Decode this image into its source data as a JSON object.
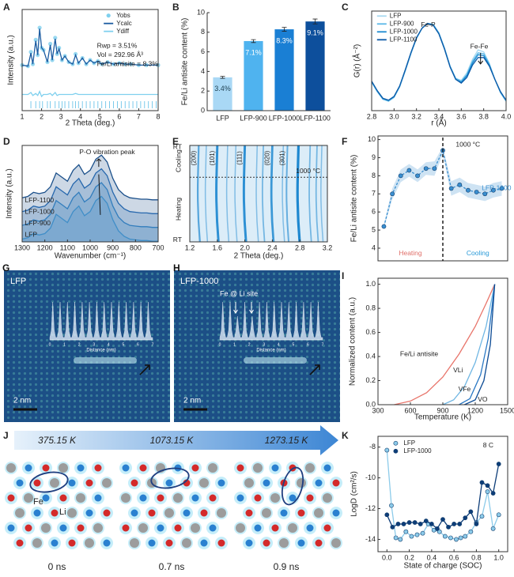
{
  "chart_data": [
    {
      "panel": "A",
      "type": "line",
      "x_label": "2 Theta (deg.)",
      "y_label": "Intensity (a.u.)",
      "xlim": [
        1,
        8
      ],
      "xticks": [
        1,
        2,
        3,
        4,
        5,
        6,
        7,
        8
      ],
      "ylim": [
        0,
        100
      ],
      "legend": "upper right",
      "x": [
        1,
        1.3,
        1.45,
        1.55,
        1.7,
        1.8,
        1.9,
        2.0,
        2.1,
        2.3,
        2.45,
        2.55,
        2.7,
        2.8,
        2.9,
        3.05,
        3.2,
        3.4,
        3.6,
        3.75,
        3.9,
        4.1,
        4.3,
        4.5,
        4.7,
        4.9,
        5.1,
        5.4,
        5.7,
        6.0,
        6.3,
        6.6,
        7.0,
        7.4,
        8
      ],
      "series": [
        {
          "name": "Yobs",
          "color": "#7fd0ee",
          "marker": true,
          "line": false,
          "values": [
            45,
            44,
            58,
            46,
            70,
            55,
            82,
            62,
            60,
            48,
            66,
            50,
            72,
            56,
            62,
            50,
            54,
            48,
            46,
            56,
            47,
            52,
            46,
            50,
            47,
            49,
            46,
            48,
            46,
            47,
            46,
            46,
            45,
            45,
            45
          ]
        },
        {
          "name": "Ycalc",
          "color": "#1a5aa0",
          "values": [
            45,
            44,
            57,
            46,
            69,
            55,
            81,
            62,
            60,
            48,
            65,
            50,
            71,
            56,
            61,
            50,
            54,
            48,
            46,
            55,
            47,
            52,
            46,
            50,
            47,
            49,
            46,
            48,
            46,
            47,
            46,
            46,
            45,
            45,
            45
          ]
        },
        {
          "name": "Ydiff",
          "color": "#7fd0ee",
          "values": [
            16,
            16,
            18,
            15,
            17,
            15,
            19,
            14,
            16,
            16,
            17,
            15,
            18,
            15,
            16,
            16,
            16,
            16,
            16,
            17,
            16,
            16,
            16,
            16,
            16,
            16,
            16,
            16,
            16,
            16,
            16,
            16,
            16,
            16,
            16
          ]
        }
      ],
      "reflections": [
        1.45,
        1.7,
        1.9,
        2.05,
        2.3,
        2.45,
        2.7,
        2.9,
        3.05,
        3.2,
        3.4,
        3.6,
        3.75,
        3.9,
        4.1,
        4.3,
        4.5,
        4.7,
        4.9,
        5.1,
        5.3,
        5.5,
        5.7,
        5.9,
        6.1,
        6.3,
        6.5,
        6.7,
        6.9,
        7.1,
        7.3,
        7.5,
        7.7,
        7.9
      ],
      "reflections_color": "#5bbde6",
      "annotations": [
        "Rwp = 3.51%",
        "Vol = 292.96 Å³",
        "Fe/Li antisite = 8.3%"
      ]
    },
    {
      "panel": "B",
      "type": "bar",
      "y_label": "Fe/Li antisite content (%)",
      "categories": [
        "LFP",
        "LFP-900",
        "LFP-1000",
        "LFP-1100"
      ],
      "values": [
        3.4,
        7.1,
        8.3,
        9.1
      ],
      "errors": [
        0.1,
        0.15,
        0.2,
        0.25
      ],
      "value_labels": [
        "3.4%",
        "7.1%",
        "8.3%",
        "9.1%"
      ],
      "colors": [
        "#a9d8f5",
        "#4fb3ef",
        "#1a7fd4",
        "#0d4f9c"
      ],
      "ylim": [
        0,
        10
      ],
      "yticks": [
        0,
        2,
        4,
        6,
        8,
        10
      ]
    },
    {
      "panel": "C",
      "type": "line",
      "x_label": "r (Å)",
      "y_label": "G(r) (Å⁻²)",
      "xlim": [
        2.8,
        4.0
      ],
      "xticks": [
        2.8,
        {
          "value": 3,
          "label": "3.0"
        },
        3.2,
        3.4,
        3.6,
        3.8,
        {
          "value": 4,
          "label": "4.0"
        }
      ],
      "ylim": [
        0,
        1.05
      ],
      "legend": "upper left",
      "x": [
        2.8,
        2.85,
        2.9,
        2.95,
        3.0,
        3.05,
        3.1,
        3.15,
        3.2,
        3.25,
        3.3,
        3.35,
        3.4,
        3.45,
        3.5,
        3.55,
        3.6,
        3.65,
        3.7,
        3.75,
        3.8,
        3.85,
        3.9,
        3.95,
        4.0
      ],
      "series": [
        {
          "name": "LFP",
          "color": "#a6d8f0",
          "values": [
            0.3,
            0.2,
            0.12,
            0.1,
            0.14,
            0.25,
            0.42,
            0.6,
            0.76,
            0.87,
            0.92,
            0.91,
            0.82,
            0.66,
            0.47,
            0.34,
            0.32,
            0.4,
            0.54,
            0.64,
            0.62,
            0.5,
            0.33,
            0.19,
            0.1
          ]
        },
        {
          "name": "LFP-900",
          "color": "#5ab8e8",
          "values": [
            0.3,
            0.2,
            0.12,
            0.1,
            0.14,
            0.25,
            0.42,
            0.6,
            0.76,
            0.87,
            0.92,
            0.91,
            0.82,
            0.66,
            0.47,
            0.34,
            0.31,
            0.38,
            0.52,
            0.61,
            0.6,
            0.49,
            0.33,
            0.19,
            0.1
          ]
        },
        {
          "name": "LFP-1000",
          "color": "#1b8ad0",
          "values": [
            0.31,
            0.21,
            0.13,
            0.11,
            0.15,
            0.26,
            0.43,
            0.61,
            0.77,
            0.87,
            0.92,
            0.9,
            0.81,
            0.65,
            0.46,
            0.33,
            0.3,
            0.37,
            0.5,
            0.59,
            0.58,
            0.48,
            0.33,
            0.2,
            0.11
          ]
        },
        {
          "name": "LFP-1100",
          "color": "#0d5aa7",
          "values": [
            0.31,
            0.21,
            0.13,
            0.11,
            0.15,
            0.26,
            0.43,
            0.61,
            0.77,
            0.87,
            0.92,
            0.9,
            0.81,
            0.65,
            0.46,
            0.33,
            0.29,
            0.35,
            0.48,
            0.56,
            0.56,
            0.47,
            0.33,
            0.2,
            0.11
          ]
        }
      ],
      "annotations": [
        "Fe-P",
        "Fe-Fe"
      ]
    },
    {
      "panel": "D",
      "type": "line",
      "x_label": "Wavenumber (cm⁻¹)",
      "y_label": "Intensity (a.u.)",
      "xlim": [
        1300,
        700
      ],
      "xticks": [
        1300,
        1200,
        1100,
        1000,
        900,
        800,
        700
      ],
      "ylim": [
        0,
        70
      ],
      "legend": "inline",
      "x": [
        1300,
        1275,
        1250,
        1225,
        1200,
        1175,
        1150,
        1125,
        1100,
        1075,
        1050,
        1025,
        1000,
        975,
        950,
        925,
        900,
        875,
        850,
        825,
        800,
        775,
        750,
        725,
        700
      ],
      "series": [
        {
          "name": "LFP",
          "color": "#5cb8ea",
          "fill": true,
          "values": [
            2,
            3,
            6,
            5,
            6,
            10,
            20,
            17,
            14,
            22,
            26,
            19,
            22,
            30,
            33,
            28,
            16,
            8,
            4,
            2,
            1.5,
            1,
            1,
            0.5,
            0.5
          ]
        },
        {
          "name": "LFP-900",
          "color": "#3e94d2",
          "fill": true,
          "values": [
            12,
            13,
            16,
            15,
            16,
            20,
            30,
            27,
            24,
            32,
            36,
            29,
            32,
            40,
            43,
            38,
            26,
            18,
            14,
            12,
            11.5,
            11,
            11,
            10.5,
            10.5
          ]
        },
        {
          "name": "LFP-1000",
          "color": "#2a6fb8",
          "fill": true,
          "values": [
            22,
            23,
            26,
            25,
            26,
            30,
            40,
            37,
            34,
            42,
            46,
            39,
            42,
            50,
            53,
            48,
            36,
            28,
            24,
            22,
            21.5,
            21,
            21,
            20.5,
            20.5
          ]
        },
        {
          "name": "LFP-1100",
          "color": "#1a4f8a",
          "fill": true,
          "values": [
            32,
            33,
            36,
            35,
            36,
            40,
            50,
            47,
            44,
            52,
            56,
            49,
            52,
            60,
            63,
            58,
            46,
            38,
            34,
            32,
            31.5,
            31,
            31,
            30.5,
            30.5
          ]
        }
      ],
      "annotations": [
        "P-O vibration peak"
      ]
    },
    {
      "panel": "E",
      "type": "peaks",
      "x_label": "2 Theta (deg.)",
      "xlim": [
        1.2,
        3.2
      ],
      "xticks": [
        1.2,
        1.6,
        {
          "value": 2,
          "label": "2.0"
        },
        2.4,
        2.8,
        3.2
      ],
      "color": "#1e88d0",
      "background": "#dcedf8",
      "x": [
        1.33,
        1.44,
        1.6,
        1.75,
        1.87,
        2.0,
        2.18,
        2.27,
        2.4,
        2.56,
        2.62,
        2.78,
        2.95,
        3.05,
        3.12
      ],
      "values": [
        0.6,
        0.3,
        0.9,
        0.3,
        0.3,
        0.9,
        0.3,
        0.4,
        0.8,
        0.3,
        0.5,
        1.0,
        0.4,
        0.4,
        0.3
      ],
      "peak_labels": [
        "(200)",
        null,
        "(101)",
        null,
        null,
        "(111)",
        null,
        null,
        "(020)",
        null,
        "(301)",
        null,
        null,
        null,
        null
      ],
      "annotations": [
        "Cooling",
        "Heating",
        "RT",
        "RT",
        "1000 °C"
      ]
    },
    {
      "panel": "F",
      "type": "line",
      "y_label": "Fe/Li antisite content (%)",
      "xlim": [
        -0.7,
        14.7
      ],
      "ylim": [
        3.3,
        10.2
      ],
      "yticks": [
        4,
        5,
        6,
        7,
        8,
        9,
        10
      ],
      "legend": "inline",
      "x": [
        0,
        1,
        2,
        3,
        4,
        5,
        6,
        7,
        8,
        9,
        10,
        11,
        12,
        13,
        14
      ],
      "series": [
        {
          "name": "LFP-1000",
          "color": "#3a8fd0",
          "marker": true,
          "values": [
            5.2,
            7.0,
            8.0,
            8.3,
            8.0,
            8.4,
            8.4,
            9.4,
            7.3,
            7.5,
            7.2,
            7.1,
            7.0,
            7.2,
            7.3
          ],
          "errors": [
            0.1,
            0.3,
            0.35,
            0.35,
            0.35,
            0.35,
            0.4,
            0.2,
            0.4,
            0.4,
            0.4,
            0.4,
            0.4,
            0.4,
            0.4
          ]
        }
      ],
      "annotations": [
        "1000 °C",
        "Heating",
        "Cooling"
      ]
    },
    {
      "panel": "I",
      "type": "line",
      "x_label": "Temperature (K)",
      "y_label": "Normalized content (a.u.)",
      "xlim": [
        300,
        1500
      ],
      "xticks": [
        300,
        600,
        900,
        1200,
        1500
      ],
      "ylim": [
        0,
        1.05
      ],
      "yticks": [
        {
          "value": 0,
          "label": "0.0"
        },
        0.2,
        0.4,
        0.6,
        0.8,
        {
          "value": 1,
          "label": "1.0"
        }
      ],
      "legend": "inline",
      "series": [
        {
          "name": "Fe/Li antisite",
          "color": "#e8746a",
          "x": [
            450,
            600,
            750,
            900,
            1050,
            1200,
            1300,
            1380
          ],
          "values": [
            0,
            0.03,
            0.1,
            0.23,
            0.42,
            0.65,
            0.84,
            1.0
          ]
        },
        {
          "name": "VLi",
          "color": "#6fb6e3",
          "x": [
            900,
            1000,
            1100,
            1200,
            1300,
            1380
          ],
          "values": [
            0,
            0.04,
            0.15,
            0.35,
            0.65,
            1.0
          ]
        },
        {
          "name": "VFe",
          "color": "#2a78c4",
          "x": [
            1050,
            1150,
            1250,
            1320,
            1380
          ],
          "values": [
            0,
            0.05,
            0.25,
            0.55,
            1.0
          ]
        },
        {
          "name": "VO",
          "color": "#0b4a94",
          "x": [
            1100,
            1200,
            1280,
            1340,
            1380
          ],
          "values": [
            0,
            0.04,
            0.2,
            0.5,
            1.0
          ]
        }
      ]
    },
    {
      "panel": "K",
      "type": "line",
      "x_label": "State of charge (SOC)",
      "y_label": "LogD (cm²/s)",
      "xlim": [
        -0.08,
        1.08
      ],
      "xticks": [
        {
          "value": 0,
          "label": "0.0"
        },
        0.2,
        0.4,
        0.6,
        0.8,
        {
          "value": 1,
          "label": "1.0"
        }
      ],
      "ylim": [
        -14.8,
        -7.3
      ],
      "yticks": [
        -8,
        -10,
        -12,
        -14
      ],
      "legend": "upper left",
      "series": [
        {
          "name": "LFP",
          "color": "#8ccbea",
          "marker": true,
          "x": [
            0,
            0.04,
            0.08,
            0.12,
            0.17,
            0.22,
            0.27,
            0.32,
            0.37,
            0.42,
            0.47,
            0.52,
            0.57,
            0.62,
            0.66,
            0.7,
            0.75,
            0.8,
            0.85,
            0.9,
            0.95,
            1.0
          ],
          "values": [
            -8.2,
            -11.8,
            -13.9,
            -14.0,
            -13.5,
            -13.8,
            -13.7,
            -13.6,
            -13.0,
            -13.4,
            -13.5,
            -13.8,
            -13.9,
            -14.0,
            -13.9,
            -13.8,
            -13.5,
            -12.9,
            -12.5,
            -10.9,
            -13.3,
            -12.4
          ]
        },
        {
          "name": "LFP-1000",
          "color": "#0d3d78",
          "marker": true,
          "x": [
            0,
            0.05,
            0.1,
            0.15,
            0.2,
            0.25,
            0.3,
            0.35,
            0.4,
            0.45,
            0.5,
            0.55,
            0.6,
            0.65,
            0.7,
            0.75,
            0.8,
            0.85,
            0.9,
            0.95,
            1.0
          ],
          "values": [
            -12.4,
            -13.2,
            -13.0,
            -13.0,
            -12.9,
            -12.9,
            -13.0,
            -12.8,
            -13.0,
            -13.3,
            -12.7,
            -13.2,
            -13.0,
            -13.0,
            -12.6,
            -12.2,
            -13.0,
            -10.3,
            -10.5,
            -11.0,
            -9.1
          ]
        }
      ],
      "annotations": [
        "8 C"
      ]
    }
  ],
  "micrographs": [
    {
      "panel": "G",
      "label": "LFP",
      "inset_xlabel": "Distance (nm)",
      "inset_xticks": [
        0,
        1,
        2,
        3,
        4,
        5,
        6,
        7
      ],
      "scale_bar": "2 nm"
    },
    {
      "panel": "H",
      "label": "LFP-1000",
      "annotation": "Fe @ Li site",
      "inset_xlabel": "Distance (nm)",
      "inset_xticks": [
        0,
        1,
        2,
        3,
        4,
        5,
        6,
        7
      ],
      "scale_bar": "2 nm"
    }
  ],
  "simulation": {
    "panel": "J",
    "temperatures": [
      "375.15 K",
      "1073.15 K",
      "1273.15 K"
    ],
    "times": [
      "0 ns",
      "0.7 ns",
      "0.9 ns"
    ],
    "atoms": [
      "Fe",
      "Li"
    ]
  }
}
